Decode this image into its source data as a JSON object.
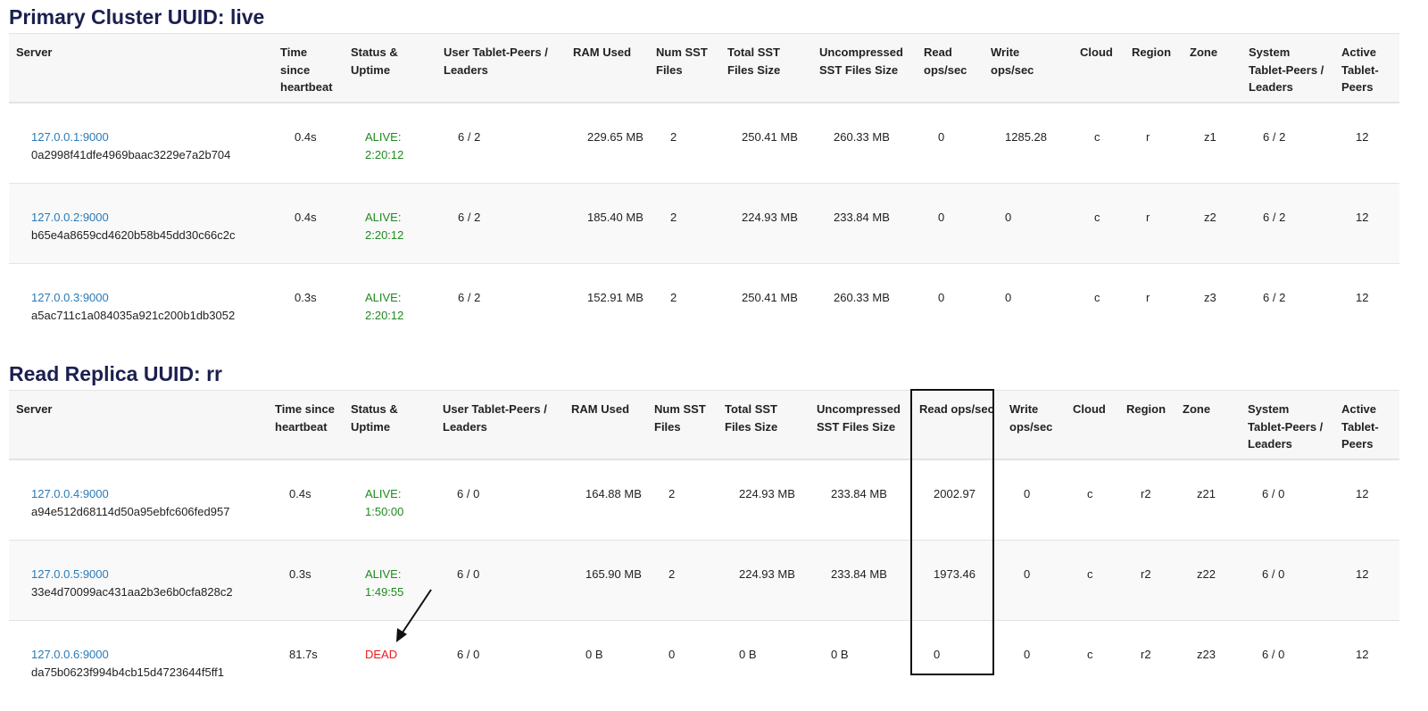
{
  "headers": [
    "Server",
    "Time since heartbeat",
    "Status & Uptime",
    "User Tablet-Peers / Leaders",
    "RAM Used",
    "Num SST Files",
    "Total SST Files Size",
    "Uncompressed SST Files Size",
    "Read ops/sec",
    "Write ops/sec",
    "Cloud",
    "Region",
    "Zone",
    "System Tablet-Peers / Leaders",
    "Active Tablet-Peers"
  ],
  "primary": {
    "title": "Primary Cluster UUID: live",
    "rows": [
      {
        "addr": "127.0.0.1:9000",
        "uuid": "0a2998f41dfe4969baac3229e7a2b704",
        "hb": "0.4s",
        "status": "ALIVE:",
        "uptime": "2:20:12",
        "user": "6 / 2",
        "ram": "229.65 MB",
        "sst": "2",
        "total": "250.41 MB",
        "unc": "260.33 MB",
        "read": "0",
        "write": "1285.28",
        "cloud": "c",
        "region": "r",
        "zone": "z1",
        "system": "6 / 2",
        "active": "12"
      },
      {
        "addr": "127.0.0.2:9000",
        "uuid": "b65e4a8659cd4620b58b45dd30c66c2c",
        "hb": "0.4s",
        "status": "ALIVE:",
        "uptime": "2:20:12",
        "user": "6 / 2",
        "ram": "185.40 MB",
        "sst": "2",
        "total": "224.93 MB",
        "unc": "233.84 MB",
        "read": "0",
        "write": "0",
        "cloud": "c",
        "region": "r",
        "zone": "z2",
        "system": "6 / 2",
        "active": "12"
      },
      {
        "addr": "127.0.0.3:9000",
        "uuid": "a5ac711c1a084035a921c200b1db3052",
        "hb": "0.3s",
        "status": "ALIVE:",
        "uptime": "2:20:12",
        "user": "6 / 2",
        "ram": "152.91 MB",
        "sst": "2",
        "total": "250.41 MB",
        "unc": "260.33 MB",
        "read": "0",
        "write": "0",
        "cloud": "c",
        "region": "r",
        "zone": "z3",
        "system": "6 / 2",
        "active": "12"
      }
    ]
  },
  "replica": {
    "title": "Read Replica UUID: rr",
    "rows": [
      {
        "addr": "127.0.0.4:9000",
        "uuid": "a94e512d68114d50a95ebfc606fed957",
        "hb": "0.4s",
        "status": "ALIVE:",
        "uptime": "1:50:00",
        "user": "6 / 0",
        "ram": "164.88 MB",
        "sst": "2",
        "total": "224.93 MB",
        "unc": "233.84 MB",
        "read": "2002.97",
        "write": "0",
        "cloud": "c",
        "region": "r2",
        "zone": "z21",
        "system": "6 / 0",
        "active": "12"
      },
      {
        "addr": "127.0.0.5:9000",
        "uuid": "33e4d70099ac431aa2b3e6b0cfa828c2",
        "hb": "0.3s",
        "status": "ALIVE:",
        "uptime": "1:49:55",
        "user": "6 / 0",
        "ram": "165.90 MB",
        "sst": "2",
        "total": "224.93 MB",
        "unc": "233.84 MB",
        "read": "1973.46",
        "write": "0",
        "cloud": "c",
        "region": "r2",
        "zone": "z22",
        "system": "6 / 0",
        "active": "12"
      },
      {
        "addr": "127.0.0.6:9000",
        "uuid": "da75b0623f994b4cb15d4723644f5ff1",
        "hb": "81.7s",
        "status": "DEAD",
        "uptime": "",
        "user": "6 / 0",
        "ram": "0 B",
        "sst": "0",
        "total": "0 B",
        "unc": "0 B",
        "read": "0",
        "write": "0",
        "cloud": "c",
        "region": "r2",
        "zone": "z23",
        "system": "6 / 0",
        "active": "12"
      }
    ]
  },
  "colors": {
    "alive": "#1e8a1e",
    "dead": "#f01818",
    "link": "#2a7ab8"
  }
}
